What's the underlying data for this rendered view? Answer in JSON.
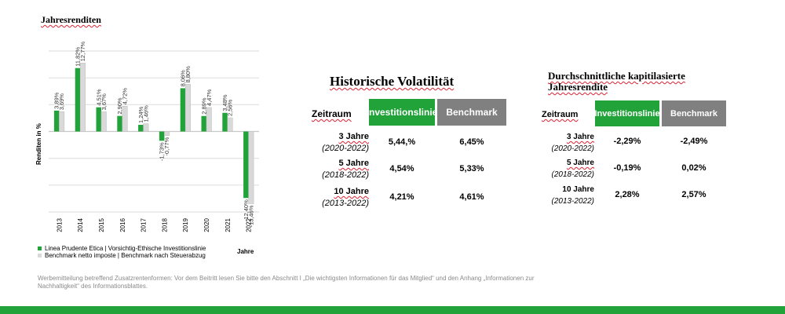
{
  "chart_title": "Jahresrenditen",
  "chart_data": {
    "type": "bar",
    "categories": [
      "2013",
      "2014",
      "2015",
      "2016",
      "2017",
      "2018",
      "2019",
      "2020",
      "2021",
      "2022"
    ],
    "series": [
      {
        "name": "Linea Prudente Etica | Vorsichtig-Ethische Investitionslinie",
        "color": "#22a33a",
        "values": [
          3.89,
          11.82,
          4.51,
          2.9,
          1.24,
          -1.73,
          8.06,
          2.89,
          3.48,
          -12.4
        ],
        "labels": [
          "3,89%",
          "11,82%",
          "4,51%",
          "2,90%",
          "1,24%",
          "-1,73%",
          "8,06%",
          "2,89%",
          "3,48%",
          "-12,40%"
        ]
      },
      {
        "name": "Benchmark netto imposte | Benchmark nach Steuerabzug",
        "color": "#d9d9d9",
        "values": [
          3.69,
          12.77,
          3.67,
          4.72,
          1.46,
          -0.77,
          8.8,
          4.47,
          2.56,
          -13.46
        ],
        "labels": [
          "3,69%",
          "12,77%",
          "3,67%",
          "4,72%",
          "1,46%",
          "-0,77%",
          "8,80%",
          "4,47%",
          "2,56%",
          "-13,46%"
        ]
      }
    ],
    "ylabel": "Renditen in %",
    "xlabel": "Jahre",
    "ylim": [
      -15,
      15
    ],
    "grid": true,
    "legend_position": "bottom"
  },
  "volatility": {
    "title": "Historische Volatilität",
    "col_period": "Zeitraum",
    "col_line": "Investitionslinie",
    "col_bench": "Benchmark",
    "rows": [
      {
        "period": "3 Jahre",
        "range": "(2020-2022)",
        "line": "5,44,%",
        "bench": "6,45%"
      },
      {
        "period": "5 Jahre",
        "range": "(2018-2022)",
        "line": "4,54%",
        "bench": "5,33%"
      },
      {
        "period": "10 Jahre",
        "range": "(2013-2022)",
        "line": "4,21%",
        "bench": "4,61%"
      }
    ]
  },
  "returns": {
    "title": "Durchschnittliche kapitilasierte Jahresrendite",
    "col_period": "Zeitraum",
    "col_line": "Investitionslinie",
    "col_bench": "Benchmark",
    "rows": [
      {
        "period": "3 Jahre",
        "range": "(2020-2022)",
        "line": "-2,29%",
        "bench": "-2,49%"
      },
      {
        "period": "5 Jahre",
        "range": "(2018-2022)",
        "line": "-0,19%",
        "bench": "0,02%"
      },
      {
        "period": "10 Jahre",
        "range": "(2013-2022)",
        "line": "2,28%",
        "bench": "2,57%"
      }
    ]
  },
  "colors": {
    "green": "#22a33a",
    "header_gray": "#808080",
    "benchmark_gray": "#d9d9d9"
  },
  "disclaimer": "Werbemitteilung betreffend Zusatzrentenformen: Vor dem Beitritt lesen Sie bitte den Abschnitt I „Die wichtigsten Informationen für das Mitglied“ und den Anhang „Informationen zur Nachhaltigkeit“ des Informationsblattes."
}
